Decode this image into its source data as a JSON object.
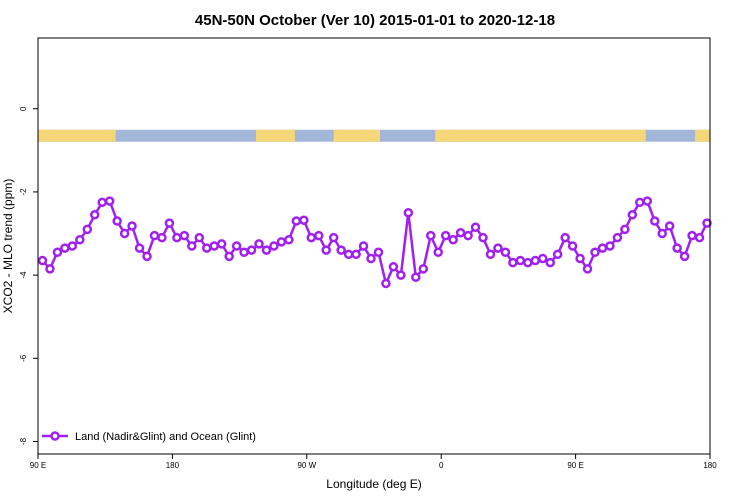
{
  "chart_data": {
    "type": "line",
    "title": "45N-50N October (Ver 10)   2015-01-01 to 2020-12-18",
    "xlabel": "Longitude (deg E)",
    "ylabel": "XCO2 - MLO trend (ppm)",
    "xlim": [
      90,
      540
    ],
    "ylim": [
      -8.3,
      1.7
    ],
    "x_ticks": [
      {
        "value": 90,
        "label": "90 E"
      },
      {
        "value": 180,
        "label": "180"
      },
      {
        "value": 270,
        "label": "90 W"
      },
      {
        "value": 360,
        "label": "0"
      },
      {
        "value": 450,
        "label": "90 E"
      },
      {
        "value": 540,
        "label": "180"
      }
    ],
    "y_ticks": [
      0,
      -2,
      -4,
      -6,
      -8
    ],
    "grid": false,
    "legend_position": "bottom-left",
    "land_ocean_strip": {
      "y_value": -0.65,
      "land_color": "#f5d77a",
      "ocean_color": "#a2b6d8",
      "land_segments": [
        [
          90,
          142
        ],
        [
          236,
          262
        ],
        [
          288,
          319
        ],
        [
          356,
          497
        ],
        [
          530,
          540
        ]
      ]
    },
    "series": [
      {
        "name": "Land (Nadir&Glint) and Ocean (Glint)",
        "color": "#a020f0",
        "x": [
          93,
          98,
          103,
          108,
          113,
          118,
          123,
          128,
          133,
          138,
          143,
          148,
          153,
          158,
          163,
          168,
          173,
          178,
          183,
          188,
          193,
          198,
          203,
          208,
          213,
          218,
          223,
          228,
          233,
          238,
          243,
          248,
          253,
          258,
          263,
          268,
          273,
          278,
          283,
          288,
          293,
          298,
          303,
          308,
          313,
          318,
          323,
          328,
          333,
          338,
          343,
          348,
          353,
          358,
          363,
          368,
          373,
          378,
          383,
          388,
          393,
          398,
          403,
          408,
          413,
          418,
          423,
          428,
          433,
          438,
          443,
          448,
          453,
          458,
          463,
          468,
          473,
          478,
          483,
          488,
          493,
          498,
          503,
          508,
          513,
          518,
          523,
          528,
          533,
          538
        ],
        "y": [
          -3.65,
          -3.85,
          -3.45,
          -3.35,
          -3.3,
          -3.15,
          -2.9,
          -2.55,
          -2.25,
          -2.22,
          -2.7,
          -3.0,
          -2.82,
          -3.35,
          -3.55,
          -3.05,
          -3.1,
          -2.75,
          -3.1,
          -3.05,
          -3.3,
          -3.1,
          -3.35,
          -3.3,
          -3.25,
          -3.55,
          -3.3,
          -3.45,
          -3.4,
          -3.25,
          -3.4,
          -3.3,
          -3.2,
          -3.15,
          -2.7,
          -2.68,
          -3.1,
          -3.05,
          -3.4,
          -3.1,
          -3.4,
          -3.5,
          -3.5,
          -3.3,
          -3.6,
          -3.45,
          -4.2,
          -3.8,
          -4.0,
          -2.5,
          -4.05,
          -3.85,
          -3.05,
          -3.45,
          -3.05,
          -3.15,
          -2.98,
          -3.05,
          -2.85,
          -3.1,
          -3.5,
          -3.35,
          -3.45,
          -3.7,
          -3.65,
          -3.7,
          -3.65,
          -3.6,
          -3.7,
          -3.5,
          -3.1,
          -3.3,
          -3.6,
          -3.85,
          -3.45,
          -3.35,
          -3.3,
          -3.1,
          -2.9,
          -2.55,
          -2.25,
          -2.22,
          -2.7,
          -3.0,
          -2.82,
          -3.35,
          -3.55,
          -3.05,
          -3.1,
          -2.75
        ]
      }
    ]
  }
}
